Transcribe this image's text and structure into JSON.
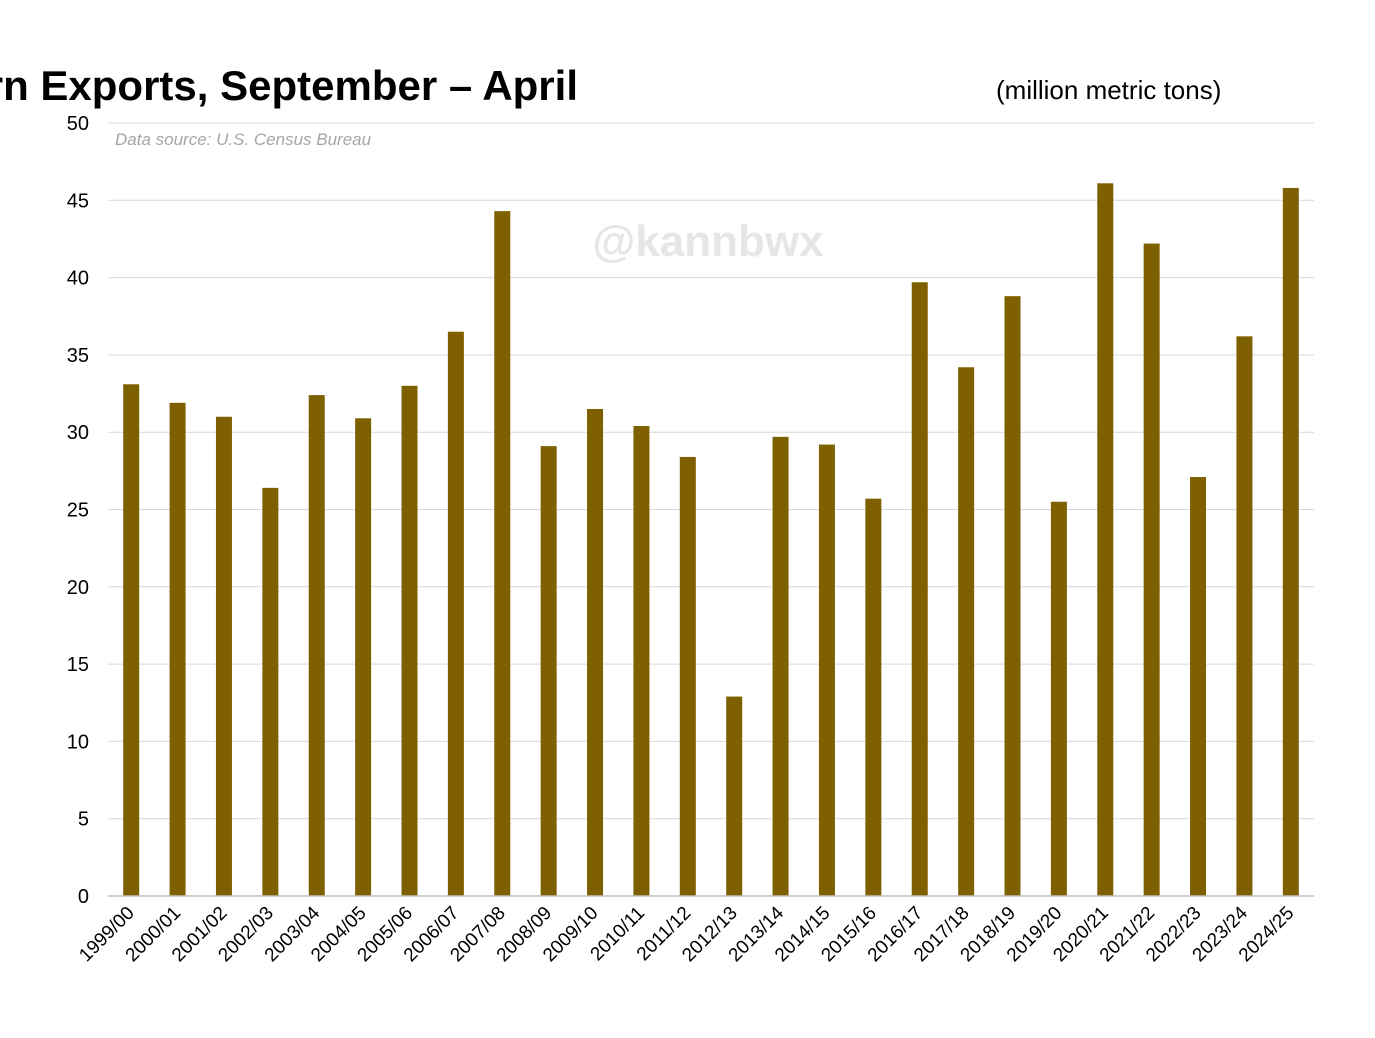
{
  "chart_data": {
    "type": "bar",
    "title": "U.S. Corn Exports, September – April",
    "subtitle": "(million metric tons)",
    "source": "Data source: U.S. Census Bureau",
    "watermark": "@kannbwx",
    "xlabel": "",
    "ylabel": "",
    "ylim": [
      0,
      50
    ],
    "yticks": [
      0,
      5,
      10,
      15,
      20,
      25,
      30,
      35,
      40,
      45,
      50
    ],
    "grid": true,
    "bar_color": "#7f6000",
    "categories": [
      "1999/00",
      "2000/01",
      "2001/02",
      "2002/03",
      "2003/04",
      "2004/05",
      "2005/06",
      "2006/07",
      "2007/08",
      "2008/09",
      "2009/10",
      "2010/11",
      "2011/12",
      "2012/13",
      "2013/14",
      "2014/15",
      "2015/16",
      "2016/17",
      "2017/18",
      "2018/19",
      "2019/20",
      "2020/21",
      "2021/22",
      "2022/23",
      "2023/24",
      "2024/25"
    ],
    "values": [
      33.1,
      31.9,
      31.0,
      26.4,
      32.4,
      30.9,
      33.0,
      36.5,
      44.3,
      29.1,
      31.5,
      30.4,
      28.4,
      12.9,
      29.7,
      29.2,
      25.7,
      39.7,
      34.2,
      38.8,
      25.5,
      46.1,
      42.2,
      27.1,
      36.2,
      45.8
    ]
  }
}
